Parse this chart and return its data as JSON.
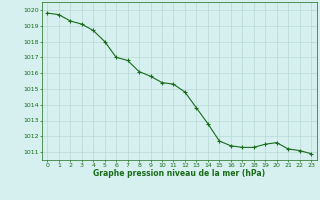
{
  "x": [
    0,
    1,
    2,
    3,
    4,
    5,
    6,
    7,
    8,
    9,
    10,
    11,
    12,
    13,
    14,
    15,
    16,
    17,
    18,
    19,
    20,
    21,
    22,
    23
  ],
  "y": [
    1019.8,
    1019.7,
    1019.3,
    1019.1,
    1018.7,
    1018.0,
    1017.0,
    1016.8,
    1016.1,
    1015.8,
    1015.4,
    1015.3,
    1014.8,
    1013.8,
    1012.8,
    1011.7,
    1011.4,
    1011.3,
    1011.3,
    1011.5,
    1011.6,
    1011.2,
    1011.1,
    1010.9
  ],
  "line_color": "#1a6b1a",
  "marker": "+",
  "bg_color": "#d6f0ef",
  "grid_color": "#b8d8d4",
  "xlabel": "Graphe pression niveau de la mer (hPa)",
  "xlabel_color": "#1a6b1a",
  "tick_color": "#1a6b1a",
  "ylim_min": 1010.5,
  "ylim_max": 1020.5,
  "xlim_min": -0.5,
  "xlim_max": 23.5,
  "xticks": [
    0,
    1,
    2,
    3,
    4,
    5,
    6,
    7,
    8,
    9,
    10,
    11,
    12,
    13,
    14,
    15,
    16,
    17,
    18,
    19,
    20,
    21,
    22,
    23
  ],
  "yticks": [
    1011,
    1012,
    1013,
    1014,
    1015,
    1016,
    1017,
    1018,
    1019,
    1020
  ]
}
